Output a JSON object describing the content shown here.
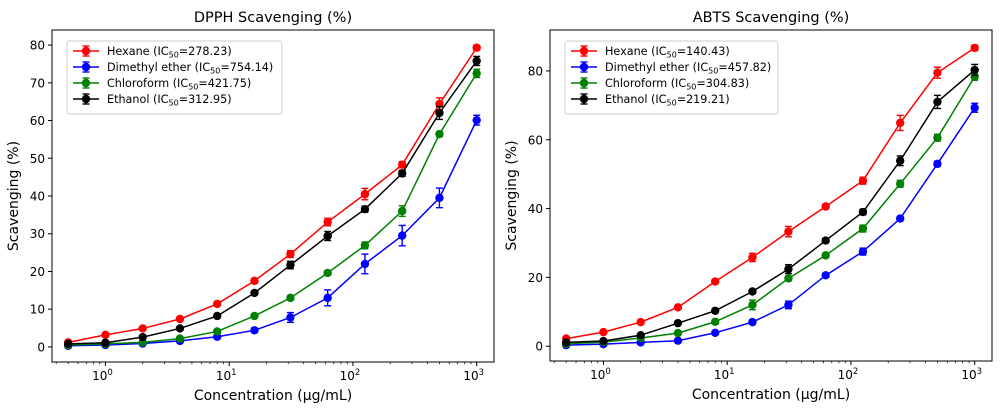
{
  "chart_data": [
    {
      "type": "line",
      "title": "DPPH Scavenging (%)",
      "xlabel": "Concentration (µg/mL)",
      "ylabel": "Scavenging (%)",
      "xscale": "log",
      "xlim": [
        0.37,
        1380
      ],
      "ylim": [
        -4,
        84
      ],
      "yticks": [
        0,
        10,
        20,
        30,
        40,
        50,
        60,
        70,
        80
      ],
      "xticks": [
        1,
        10,
        100,
        1000
      ],
      "xtick_labels": [
        {
          "base": "10",
          "exp": "0"
        },
        {
          "base": "10",
          "exp": "1"
        },
        {
          "base": "10",
          "exp": "2"
        },
        {
          "base": "10",
          "exp": "3"
        }
      ],
      "grid": false,
      "legend_position": "top-left",
      "x": [
        0.5,
        1,
        2,
        4,
        8,
        16,
        31.25,
        62.5,
        125,
        250,
        500,
        1000
      ],
      "series": [
        {
          "name": "Hexane",
          "ic50": "278.23",
          "color": "#ff0000",
          "values": [
            1.2,
            3.2,
            4.9,
            7.4,
            11.4,
            17.5,
            24.6,
            33.1,
            40.5,
            48.3,
            64.4,
            79.3
          ],
          "errors": [
            0.3,
            0.4,
            0.4,
            0.5,
            0.5,
            0.6,
            0.9,
            1.0,
            1.5,
            0.8,
            1.6,
            0.6
          ]
        },
        {
          "name": "Dimethyl ether",
          "ic50": "754.14",
          "color": "#0000ff",
          "values": [
            0.3,
            0.5,
            0.9,
            1.6,
            2.7,
            4.4,
            7.8,
            13.0,
            22.0,
            29.5,
            39.5,
            60.1
          ],
          "errors": [
            0.2,
            0.2,
            0.3,
            0.4,
            0.4,
            0.6,
            1.3,
            2.1,
            2.6,
            2.7,
            2.6,
            1.3
          ]
        },
        {
          "name": "Chloroform",
          "ic50": "421.75",
          "color": "#008000",
          "values": [
            0.5,
            0.8,
            1.2,
            2.2,
            4.1,
            8.2,
            13.0,
            19.6,
            26.9,
            36.0,
            56.4,
            72.5
          ],
          "errors": [
            0.2,
            0.2,
            0.3,
            0.4,
            0.5,
            0.5,
            0.5,
            0.6,
            0.9,
            1.4,
            0.6,
            1.1
          ]
        },
        {
          "name": "Ethanol",
          "ic50": "312.95",
          "color": "#000000",
          "values": [
            0.8,
            1.1,
            2.6,
            4.9,
            8.2,
            14.3,
            21.7,
            29.4,
            36.5,
            46.0,
            62.0,
            75.8
          ],
          "errors": [
            0.2,
            0.2,
            0.3,
            0.4,
            0.5,
            0.5,
            1.0,
            1.2,
            0.8,
            0.8,
            1.7,
            1.2
          ]
        }
      ]
    },
    {
      "type": "line",
      "title": "ABTS Scavenging (%)",
      "xlabel": "Concentration (µg/mL)",
      "ylabel": "Scavenging (%)",
      "xscale": "log",
      "xlim": [
        0.37,
        1380
      ],
      "ylim": [
        -4.3,
        91.9
      ],
      "yticks": [
        0,
        20,
        40,
        60,
        80
      ],
      "xticks": [
        1,
        10,
        100,
        1000
      ],
      "xtick_labels": [
        {
          "base": "10",
          "exp": "0"
        },
        {
          "base": "10",
          "exp": "1"
        },
        {
          "base": "10",
          "exp": "2"
        },
        {
          "base": "10",
          "exp": "3"
        }
      ],
      "grid": false,
      "legend_position": "top-left",
      "x": [
        0.5,
        1,
        2,
        4,
        8,
        16,
        31.25,
        62.5,
        125,
        250,
        500,
        1000
      ],
      "series": [
        {
          "name": "Hexane",
          "ic50": "140.43",
          "color": "#ff0000",
          "values": [
            2.2,
            4.1,
            7.0,
            11.3,
            18.8,
            25.8,
            33.3,
            40.6,
            48.1,
            64.9,
            79.5,
            86.7
          ],
          "errors": [
            0.3,
            0.4,
            0.4,
            0.5,
            0.6,
            1.2,
            1.5,
            0.7,
            1.0,
            2.2,
            1.6,
            0.8
          ]
        },
        {
          "name": "Dimethyl ether",
          "ic50": "457.82",
          "color": "#0000ff",
          "values": [
            0.3,
            0.6,
            1.1,
            1.6,
            3.9,
            7.0,
            12.0,
            20.6,
            27.5,
            37.1,
            53.0,
            69.3
          ],
          "errors": [
            0.2,
            0.2,
            0.3,
            0.3,
            0.4,
            0.5,
            1.1,
            0.6,
            1.0,
            0.6,
            0.7,
            1.3
          ]
        },
        {
          "name": "Chloroform",
          "ic50": "304.83",
          "color": "#008000",
          "values": [
            0.7,
            1.2,
            2.4,
            3.8,
            7.1,
            12.0,
            19.7,
            26.4,
            34.2,
            47.2,
            60.6,
            78.3
          ],
          "errors": [
            0.2,
            0.2,
            0.3,
            0.4,
            0.5,
            1.4,
            0.7,
            0.6,
            1.0,
            1.0,
            1.0,
            1.0
          ]
        },
        {
          "name": "Ethanol",
          "ic50": "219.21",
          "color": "#000000",
          "values": [
            1.1,
            1.5,
            3.2,
            6.7,
            10.3,
            15.9,
            22.4,
            30.7,
            39.0,
            53.9,
            71.0,
            80.3
          ],
          "errors": [
            0.2,
            0.3,
            0.3,
            0.4,
            0.4,
            0.5,
            1.3,
            0.6,
            0.8,
            1.4,
            1.9,
            1.6
          ]
        }
      ]
    }
  ]
}
